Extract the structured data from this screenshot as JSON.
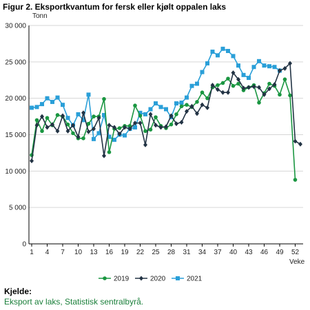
{
  "title": "Figur 2. Eksportkvantum for fersk eller kjølt oppalen laks",
  "source": {
    "heading": "Kjelde:",
    "text": "Eksport av laks, Statistisk sentralbyrå."
  },
  "chart_data": {
    "type": "line",
    "ylabel": "Tonn",
    "xlabel": "Veke",
    "ylim": [
      0,
      30000
    ],
    "yticks": [
      0,
      5000,
      10000,
      15000,
      20000,
      25000,
      30000
    ],
    "ytick_labels": [
      "0",
      "5 000",
      "10 000",
      "15 000",
      "20 000",
      "25 000",
      "30 000"
    ],
    "xlim": [
      1,
      53
    ],
    "xticks": [
      1,
      4,
      7,
      10,
      13,
      16,
      19,
      22,
      25,
      28,
      31,
      34,
      37,
      40,
      43,
      46,
      49,
      52
    ],
    "grid": "horizontal",
    "legend_position": "bottom",
    "series": [
      {
        "name": "2019",
        "color": "#1a9641",
        "marker": "circle",
        "x": [
          1,
          2,
          3,
          4,
          5,
          6,
          7,
          8,
          9,
          10,
          11,
          12,
          13,
          14,
          15,
          16,
          17,
          18,
          19,
          20,
          21,
          22,
          23,
          24,
          25,
          26,
          27,
          28,
          29,
          30,
          31,
          32,
          33,
          34,
          35,
          36,
          37,
          38,
          39,
          40,
          41,
          42,
          43,
          44,
          45,
          46,
          47,
          48,
          49,
          50,
          51,
          52
        ],
        "values": [
          12200,
          17000,
          15500,
          17300,
          16300,
          17700,
          17500,
          16400,
          15200,
          14500,
          14500,
          16500,
          17500,
          17500,
          19900,
          12600,
          15800,
          15900,
          16200,
          16200,
          19000,
          17600,
          15500,
          15700,
          17400,
          16200,
          15900,
          16400,
          17800,
          18900,
          19100,
          18800,
          19500,
          20800,
          20000,
          21500,
          21800,
          22100,
          22700,
          21700,
          22000,
          21100,
          21500,
          21800,
          19400,
          20700,
          22000,
          21700,
          20500,
          22600,
          20400,
          8800
        ]
      },
      {
        "name": "2020",
        "color": "#223344",
        "marker": "diamond",
        "x": [
          1,
          2,
          3,
          4,
          5,
          6,
          7,
          8,
          9,
          10,
          11,
          12,
          13,
          14,
          15,
          16,
          17,
          18,
          19,
          20,
          21,
          22,
          23,
          24,
          25,
          26,
          27,
          28,
          29,
          30,
          31,
          32,
          33,
          34,
          35,
          36,
          37,
          38,
          39,
          40,
          41,
          42,
          43,
          44,
          45,
          46,
          47,
          48,
          49,
          50,
          51,
          52,
          53
        ],
        "values": [
          11400,
          16300,
          17500,
          16000,
          16400,
          15500,
          17600,
          15500,
          16300,
          14700,
          18000,
          15400,
          15800,
          17300,
          12100,
          16300,
          16000,
          15100,
          16000,
          15800,
          16600,
          16600,
          13600,
          17800,
          16300,
          16000,
          16100,
          17600,
          16500,
          16700,
          18200,
          18900,
          17900,
          19100,
          18700,
          21800,
          21200,
          20800,
          20800,
          23500,
          22600,
          21400,
          21500,
          21600,
          21500,
          20500,
          21300,
          21900,
          23800,
          24100,
          24800,
          14100,
          13700
        ]
      },
      {
        "name": "2021",
        "color": "#2a9fd8",
        "marker": "square",
        "x": [
          1,
          2,
          3,
          4,
          5,
          6,
          7,
          8,
          9,
          10,
          11,
          12,
          13,
          14,
          15,
          16,
          17,
          18,
          19,
          20,
          21,
          22,
          23,
          24,
          25,
          26,
          27,
          28,
          29,
          30,
          31,
          32,
          33,
          34,
          35,
          36,
          37,
          38,
          39,
          40,
          41,
          42,
          43,
          44,
          45,
          46,
          47,
          48,
          49
        ],
        "values": [
          18700,
          18800,
          19200,
          20000,
          19500,
          20100,
          19100,
          17300,
          16300,
          17800,
          17000,
          20500,
          14400,
          15200,
          17700,
          14700,
          14300,
          15000,
          14900,
          15800,
          16000,
          18000,
          17800,
          18500,
          19300,
          18800,
          18500,
          17400,
          19300,
          19400,
          20100,
          21700,
          22000,
          23600,
          24800,
          26400,
          25900,
          26800,
          26500,
          25800,
          24500,
          23200,
          22800,
          24300,
          25100,
          24500,
          24400,
          24300,
          23800
        ]
      }
    ]
  }
}
